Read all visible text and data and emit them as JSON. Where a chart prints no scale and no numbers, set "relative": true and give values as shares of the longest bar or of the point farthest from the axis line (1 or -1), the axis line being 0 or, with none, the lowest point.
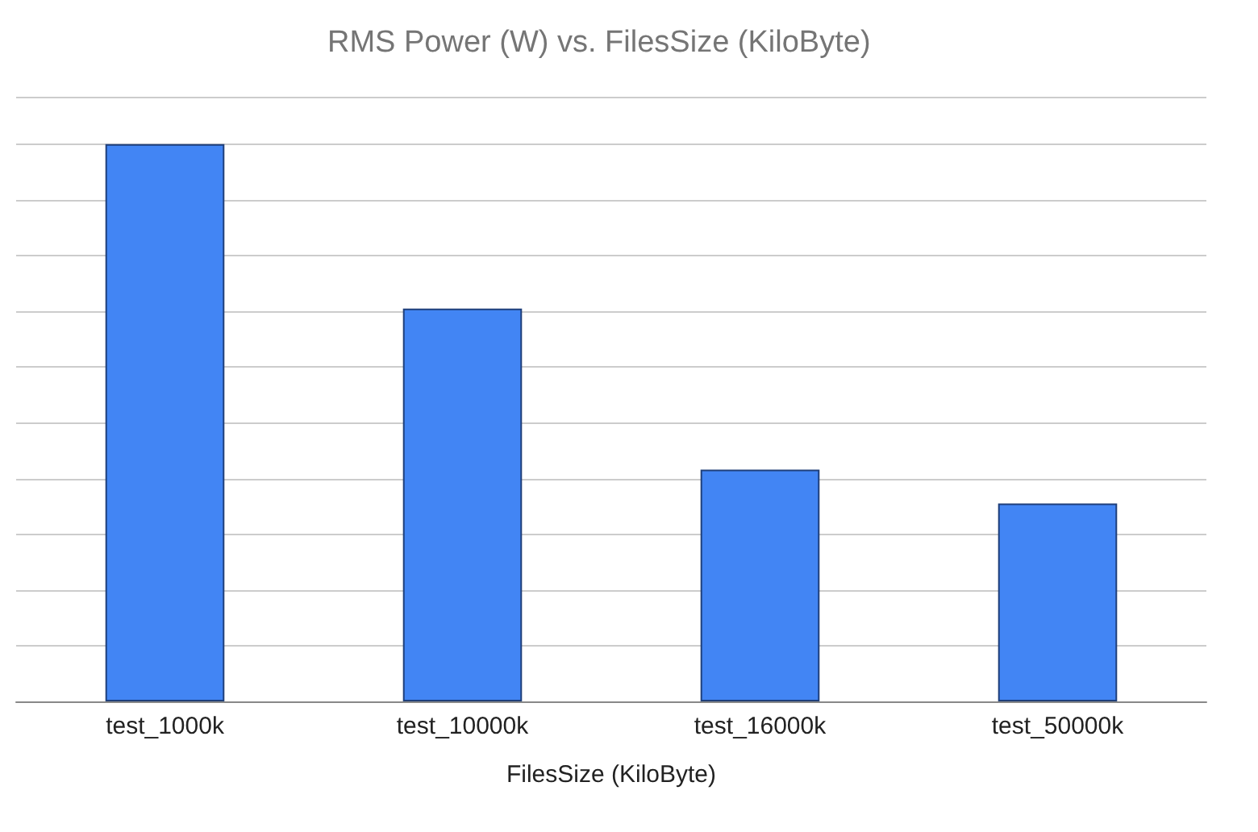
{
  "chart_data": {
    "type": "bar",
    "title": "RMS Power (W) vs. FilesSize (KiloByte)",
    "xlabel": "FilesSize (KiloByte)",
    "categories": [
      "test_1000k",
      "test_10000k",
      "test_16000k",
      "test_50000k"
    ],
    "values": [
      1,
      0.705,
      0.416,
      0.355
    ],
    "color": "#4285f4",
    "relative": true,
    "grid": "y"
  }
}
